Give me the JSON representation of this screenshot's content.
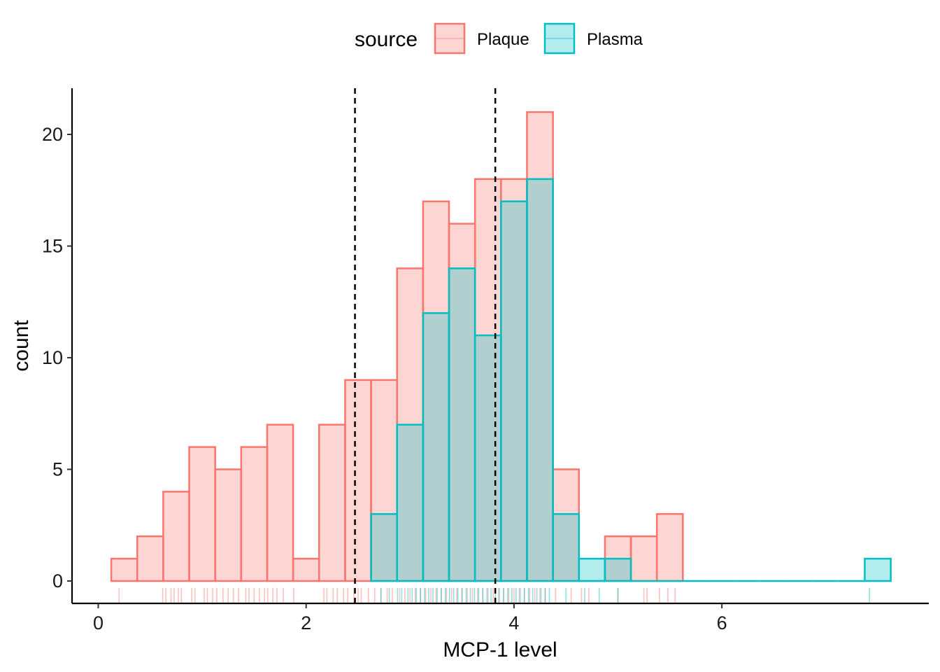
{
  "chart_data": {
    "type": "bar",
    "subtype": "overlaid histogram with rug and reference lines",
    "xlabel": "MCP-1 level",
    "ylabel": "count",
    "xlim": [
      -0.25,
      7.9
    ],
    "ylim": [
      -1,
      22
    ],
    "x_ticks": [
      0,
      2,
      4,
      6
    ],
    "y_ticks": [
      0,
      5,
      10,
      15,
      20
    ],
    "grid": false,
    "bin_width": 0.25,
    "bin_starts": [
      0.125,
      0.375,
      0.625,
      0.875,
      1.125,
      1.375,
      1.625,
      1.875,
      2.125,
      2.375,
      2.625,
      2.875,
      3.125,
      3.375,
      3.625,
      3.875,
      4.125,
      4.375,
      4.625,
      4.875,
      5.125,
      5.375,
      5.625,
      5.875,
      6.125,
      6.375,
      6.625,
      6.875,
      7.125,
      7.375
    ],
    "legend": {
      "title": "source",
      "position": "top"
    },
    "series": [
      {
        "name": "Plaque",
        "stroke": "#F8766D",
        "fill": "#F8766D",
        "fill_opacity": 0.3,
        "values": [
          1,
          2,
          4,
          6,
          5,
          6,
          7,
          1,
          7,
          9,
          9,
          14,
          17,
          16,
          18,
          18,
          21,
          5,
          0,
          2,
          2,
          3,
          0,
          0,
          0,
          0,
          0,
          0,
          0,
          0
        ],
        "rug": [
          0.2,
          0.62,
          0.65,
          0.7,
          0.73,
          0.77,
          0.8,
          0.9,
          0.93,
          1.02,
          1.05,
          1.1,
          1.14,
          1.2,
          1.25,
          1.3,
          1.35,
          1.42,
          1.45,
          1.5,
          1.55,
          1.6,
          1.63,
          1.68,
          1.72,
          1.78,
          1.88,
          2.17,
          2.2,
          2.26,
          2.3,
          2.36,
          2.4,
          2.46,
          2.5,
          2.53,
          2.6,
          2.66,
          2.72,
          2.78,
          2.83,
          2.9,
          2.95,
          3.0,
          3.05,
          3.1,
          3.15,
          3.2,
          3.25,
          3.3,
          3.35,
          3.4,
          3.45,
          3.5,
          3.55,
          3.6,
          3.65,
          3.7,
          3.75,
          3.8,
          3.85,
          3.9,
          3.95,
          4.0,
          4.05,
          4.1,
          4.15,
          4.2,
          4.25,
          4.3,
          4.4,
          4.55,
          4.65,
          4.72,
          5.0,
          5.25,
          5.28,
          5.4,
          5.48,
          5.55
        ]
      },
      {
        "name": "Plasma",
        "stroke": "#00BFC4",
        "fill": "#00BFC4",
        "fill_opacity": 0.3,
        "values": [
          0,
          0,
          0,
          0,
          0,
          0,
          0,
          0,
          0,
          0,
          3,
          7,
          12,
          14,
          11,
          17,
          18,
          3,
          1,
          1,
          0,
          0,
          0,
          0,
          0,
          0,
          0,
          0,
          0,
          1
        ],
        "rug": [
          2.72,
          2.8,
          2.88,
          2.92,
          2.98,
          3.02,
          3.06,
          3.1,
          3.14,
          3.18,
          3.22,
          3.26,
          3.3,
          3.34,
          3.38,
          3.42,
          3.46,
          3.5,
          3.54,
          3.58,
          3.62,
          3.66,
          3.7,
          3.74,
          3.78,
          3.82,
          3.86,
          3.9,
          3.94,
          3.98,
          4.02,
          4.06,
          4.1,
          4.14,
          4.18,
          4.22,
          4.26,
          4.3,
          4.34,
          4.5,
          4.68,
          4.82,
          5.0,
          7.42
        ]
      }
    ],
    "vlines": [
      {
        "x": 2.47,
        "style": "dashed",
        "color": "#000000"
      },
      {
        "x": 3.82,
        "style": "dashed",
        "color": "#000000"
      }
    ]
  }
}
